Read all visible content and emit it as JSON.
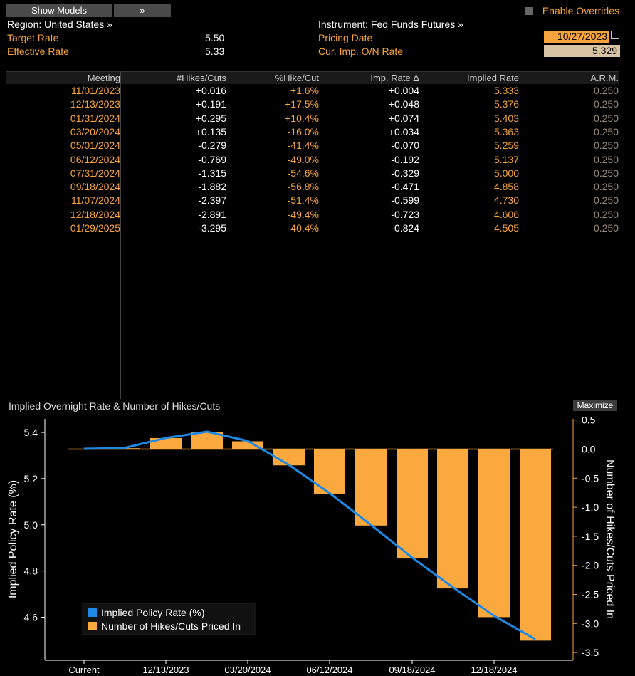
{
  "toolbar": {
    "show_models": "Show Models",
    "arrows": "»",
    "enable_overrides": "Enable Overrides"
  },
  "header": {
    "region": "Region: United States »",
    "instrument": "Instrument: Fed Funds Futures »",
    "target_rate_label": "Target Rate",
    "target_rate_value": "5.50",
    "effective_rate_label": "Effective Rate",
    "effective_rate_value": "5.33",
    "pricing_date_label": "Pricing Date",
    "pricing_date_value": "10/27/2023",
    "cur_imp_label": "Cur. Imp. O/N Rate",
    "cur_imp_value": "5.329"
  },
  "table": {
    "columns": [
      "Meeting",
      "#Hikes/Cuts",
      "%Hike/Cut",
      "Imp. Rate Δ",
      "Implied Rate",
      "A.R.M."
    ],
    "rows": [
      [
        "11/01/2023",
        "+0.016",
        "+1.6%",
        "+0.004",
        "5.333",
        "0.250"
      ],
      [
        "12/13/2023",
        "+0.191",
        "+17.5%",
        "+0.048",
        "5.376",
        "0.250"
      ],
      [
        "01/31/2024",
        "+0.295",
        "+10.4%",
        "+0.074",
        "5.403",
        "0.250"
      ],
      [
        "03/20/2024",
        "+0.135",
        "-16.0%",
        "+0.034",
        "5.363",
        "0.250"
      ],
      [
        "05/01/2024",
        "-0.279",
        "-41.4%",
        "-0.070",
        "5.259",
        "0.250"
      ],
      [
        "06/12/2024",
        "-0.769",
        "-49.0%",
        "-0.192",
        "5.137",
        "0.250"
      ],
      [
        "07/31/2024",
        "-1.315",
        "-54.6%",
        "-0.329",
        "5.000",
        "0.250"
      ],
      [
        "09/18/2024",
        "-1.882",
        "-56.8%",
        "-0.471",
        "4.858",
        "0.250"
      ],
      [
        "11/07/2024",
        "-2.397",
        "-51.4%",
        "-0.599",
        "4.730",
        "0.250"
      ],
      [
        "12/18/2024",
        "-2.891",
        "-49.4%",
        "-0.723",
        "4.606",
        "0.250"
      ],
      [
        "01/29/2025",
        "-3.295",
        "-40.4%",
        "-0.824",
        "4.505",
        "0.250"
      ]
    ]
  },
  "chart_header": {
    "title": "Implied Overnight Rate & Number of Hikes/Cuts",
    "maximize": "Maximize"
  },
  "colors": {
    "orange": "#f7a43c",
    "blue": "#1e88e5",
    "bar": "#fba93f"
  },
  "chart_data": {
    "type": "bar+line",
    "title": "Implied Overnight Rate & Number of Hikes/Cuts",
    "ylabel_left": "Implied Policy Rate (%)",
    "ylabel_right": "Number of Hikes/Cuts Priced In",
    "ylim_left": [
      4.5,
      5.45
    ],
    "ylim_right": [
      -3.5,
      0.5
    ],
    "yticks_left": [
      "5.4",
      "5.2",
      "5.0",
      "4.8",
      "4.6"
    ],
    "yticks_right": [
      "0.5",
      "0.0",
      "-0.5",
      "-1.0",
      "-1.5",
      "-2.0",
      "-2.5",
      "-3.0",
      "-3.5"
    ],
    "x": [
      "Current",
      "11/01/2023",
      "12/13/2023",
      "01/31/2024",
      "03/20/2024",
      "05/01/2024",
      "06/12/2024",
      "07/31/2024",
      "09/18/2024",
      "11/07/2024",
      "12/18/2024",
      "01/29/2025"
    ],
    "xtick_labels": [
      "Current",
      "12/13/2023",
      "03/20/2024",
      "06/12/2024",
      "09/18/2024",
      "12/18/2024"
    ],
    "series": [
      {
        "name": "Implied Policy Rate (%)",
        "type": "line",
        "values": [
          5.329,
          5.333,
          5.376,
          5.403,
          5.363,
          5.259,
          5.137,
          5.0,
          4.858,
          4.73,
          4.606,
          4.505
        ]
      },
      {
        "name": "Number of Hikes/Cuts Priced In",
        "type": "bar",
        "values": [
          null,
          0.016,
          0.191,
          0.295,
          0.135,
          -0.279,
          -0.769,
          -1.315,
          -1.882,
          -2.397,
          -2.891,
          -3.295
        ]
      }
    ],
    "legend": "bottom-left",
    "grid": false
  }
}
